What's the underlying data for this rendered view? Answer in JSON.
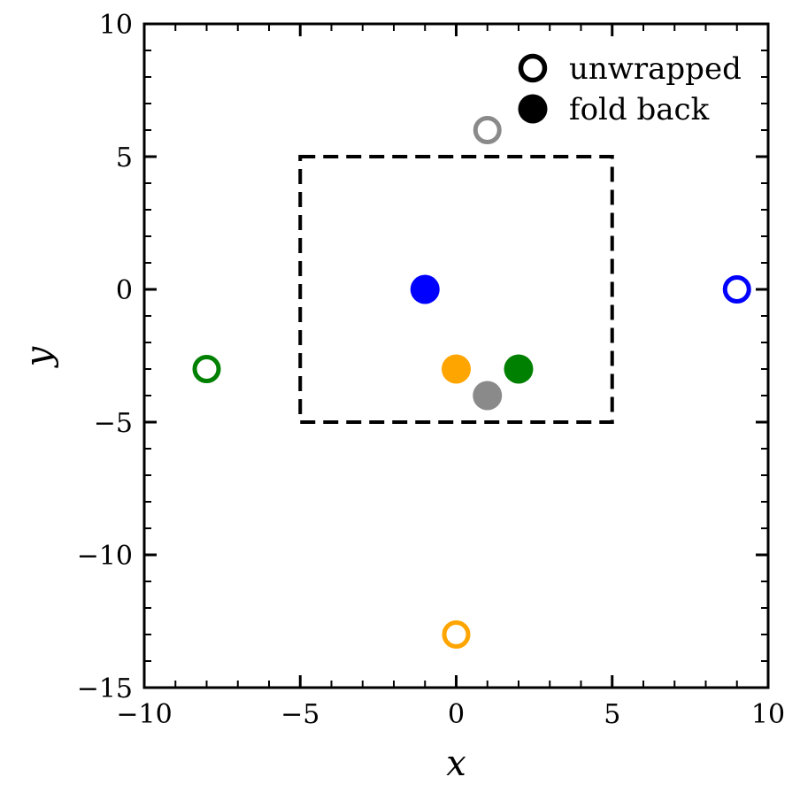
{
  "figure": {
    "background": "#ffffff",
    "frame_color": "#000000"
  },
  "chart_data": {
    "type": "scatter",
    "title": "",
    "xlabel": "x",
    "ylabel": "y",
    "xlim": [
      -10,
      10
    ],
    "ylim": [
      -15,
      10
    ],
    "xticks": [
      -10,
      -5,
      0,
      5,
      10
    ],
    "yticks": [
      -15,
      -10,
      -5,
      0,
      5,
      10
    ],
    "minor_tick_step": 1,
    "grid": false,
    "legend_position": "upper right",
    "legend": [
      {
        "label": "unwrapped",
        "marker": "open-circle",
        "color": "#000000"
      },
      {
        "label": "fold back",
        "marker": "filled-circle",
        "color": "#000000"
      }
    ],
    "series": [
      {
        "name": "unwrapped",
        "marker": "open-circle",
        "points": [
          {
            "x": 1,
            "y": 6,
            "color": "#8a8a8a"
          },
          {
            "x": 9,
            "y": 0,
            "color": "#0000ff"
          },
          {
            "x": -8,
            "y": -3,
            "color": "#008000"
          },
          {
            "x": 0,
            "y": -13,
            "color": "#ffa500"
          }
        ]
      },
      {
        "name": "fold back",
        "marker": "filled-circle",
        "points": [
          {
            "x": -1,
            "y": 0,
            "color": "#0000ff"
          },
          {
            "x": 0,
            "y": -3,
            "color": "#ffa500"
          },
          {
            "x": 2,
            "y": -3,
            "color": "#008000"
          },
          {
            "x": 1,
            "y": -4,
            "color": "#8a8a8a"
          }
        ]
      }
    ],
    "annotations": [
      {
        "type": "dashed-box",
        "x0": -5,
        "y0": -5,
        "x1": 5,
        "y1": 5,
        "color": "#000000"
      }
    ]
  }
}
